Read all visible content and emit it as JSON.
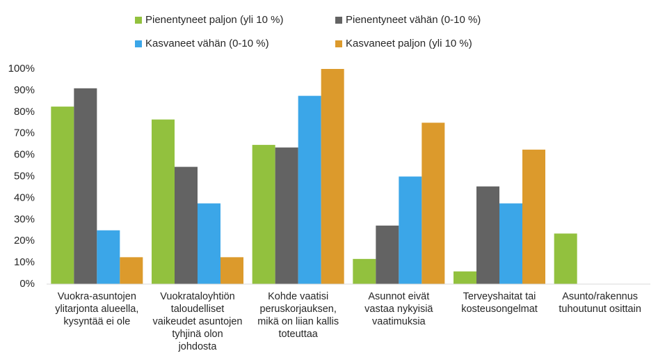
{
  "chart_data": {
    "type": "bar",
    "categories": [
      "Vuokra-asuntojen\nylitarjonta alueella,\nkysyntää ei ole",
      "Vuokrataloyhtiön\ntaloudelliset\nvaikeudet asuntojen\ntyhjinä olon\njohdosta",
      "Kohde vaatisi\nperuskorjauksen,\nmikä on liian kallis\ntoteuttaa",
      "Asunnot eivät\nvastaa nykyisiä\nvaatimuksia",
      "Terveyshaitat tai\nkosteusongelmat",
      "Asunto/rakennus\ntuhoutunut osittain"
    ],
    "series": [
      {
        "name": "Pienentyneet paljon (yli 10 %)",
        "color": "#92c13e",
        "values": [
          82.5,
          76.5,
          64.7,
          11.7,
          5.9,
          23.5
        ]
      },
      {
        "name": "Pienentyneet vähän (0-10 %)",
        "color": "#636363",
        "values": [
          91,
          54.5,
          63.5,
          27.2,
          45.4,
          0
        ]
      },
      {
        "name": "Kasvaneet vähän (0-10 %)",
        "color": "#3ba6e8",
        "values": [
          25,
          37.5,
          87.5,
          50,
          37.5,
          0
        ]
      },
      {
        "name": "Kasvaneet paljon (yli 10 %)",
        "color": "#dc9a2c",
        "values": [
          12.5,
          12.5,
          100,
          75,
          62.5,
          0
        ]
      }
    ],
    "ylim": [
      0,
      100
    ],
    "yticks": [
      {
        "value": 0,
        "label": "0%"
      },
      {
        "value": 10,
        "label": "10%"
      },
      {
        "value": 20,
        "label": "20%"
      },
      {
        "value": 30,
        "label": "30%"
      },
      {
        "value": 40,
        "label": "40%"
      },
      {
        "value": 50,
        "label": "50%"
      },
      {
        "value": 60,
        "label": "60%"
      },
      {
        "value": 70,
        "label": "70%"
      },
      {
        "value": 80,
        "label": "80%"
      },
      {
        "value": 90,
        "label": "90%"
      },
      {
        "value": 100,
        "label": "100%"
      }
    ],
    "grid": false
  }
}
